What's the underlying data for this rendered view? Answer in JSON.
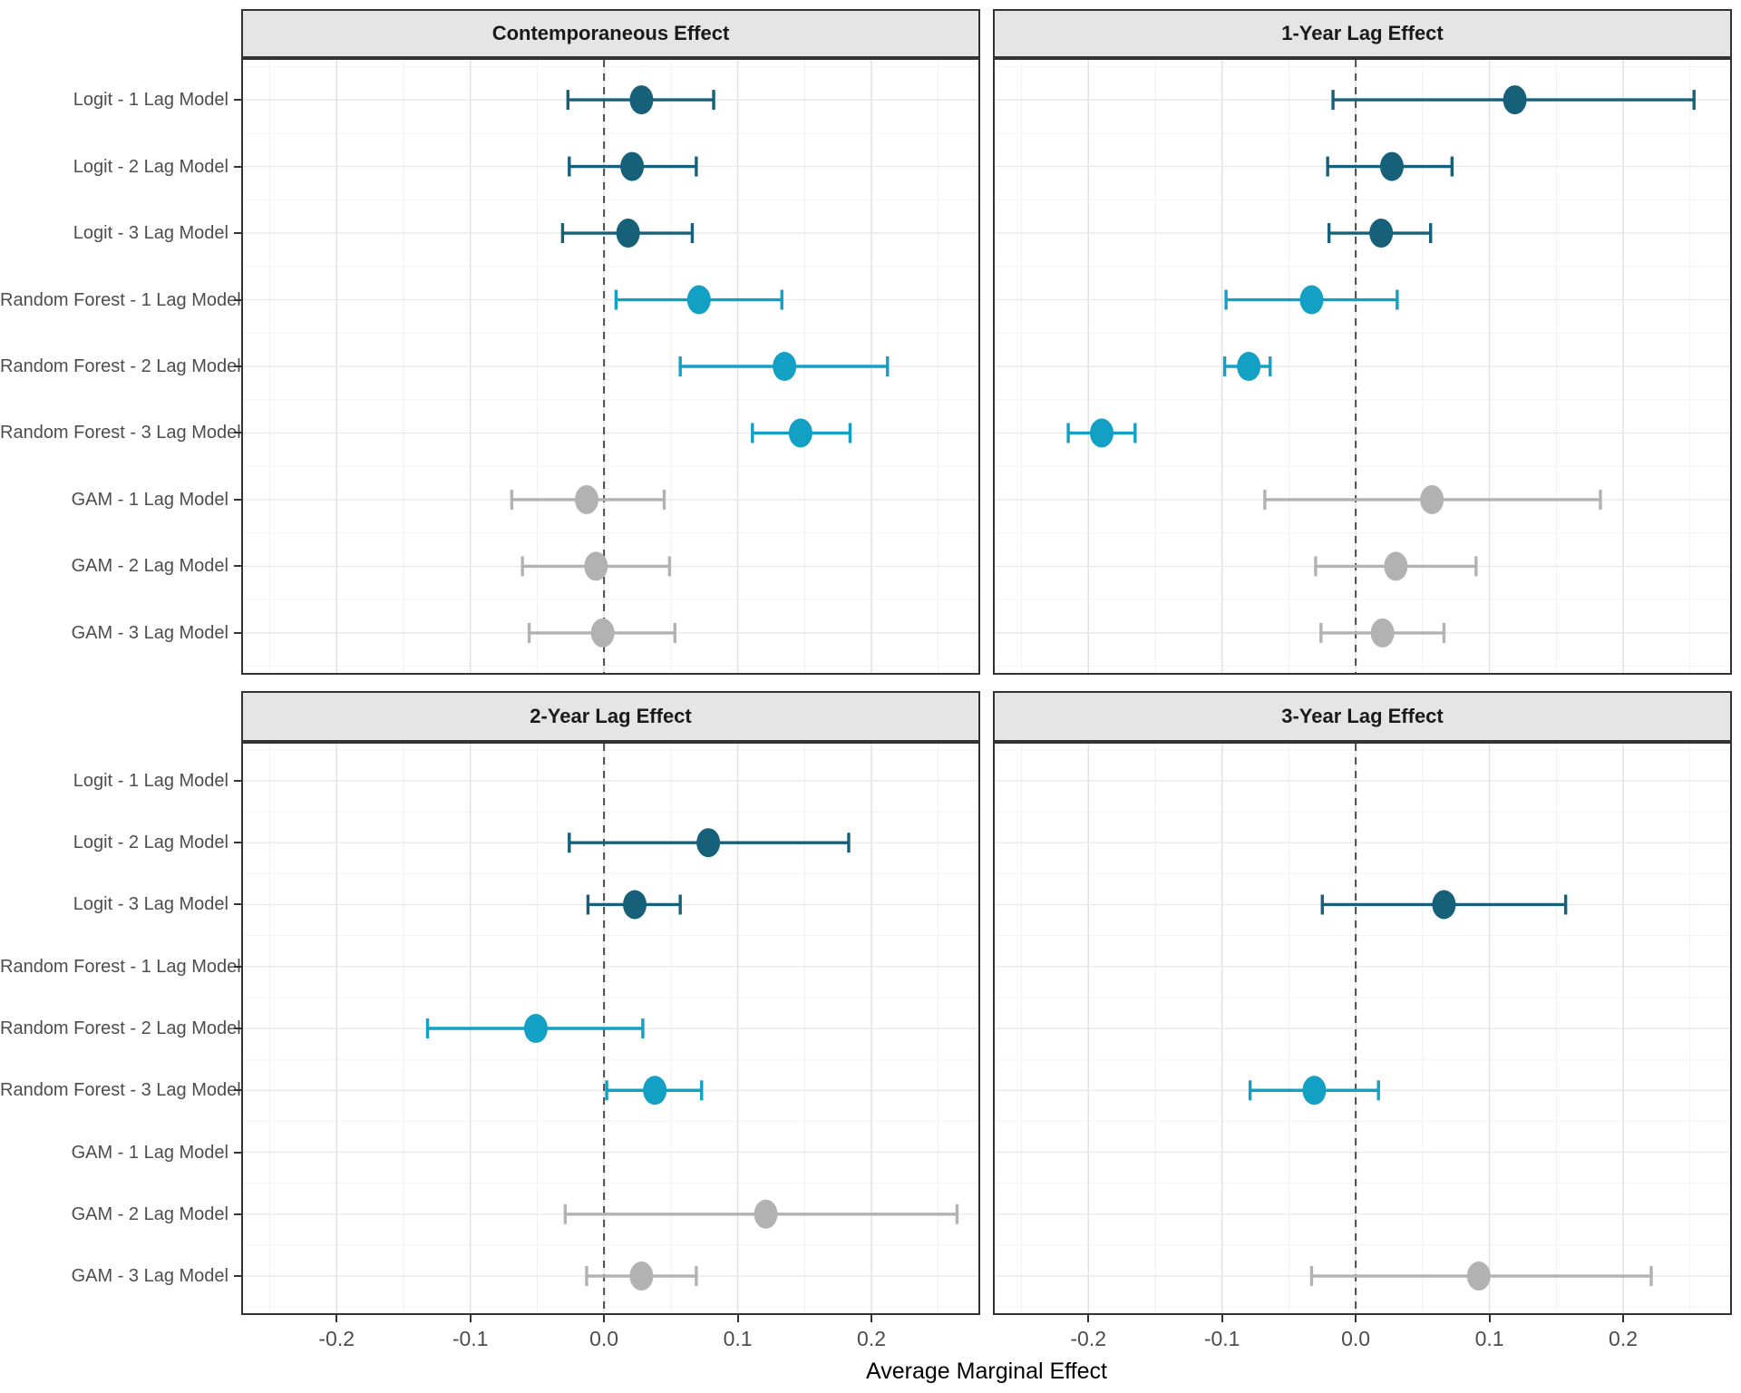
{
  "chart_data": {
    "type": "scatter",
    "subtype": "forest-pointrange",
    "xlabel": "Average Marginal Effect",
    "categories": [
      "Logit - 1 Lag Model",
      "Logit - 2 Lag Model",
      "Logit - 3 Lag Model",
      "Random Forest - 1 Lag Model",
      "Random Forest - 2 Lag Model",
      "Random Forest - 3 Lag Model",
      "GAM - 1 Lag Model",
      "GAM - 2 Lag Model",
      "GAM - 3 Lag Model"
    ],
    "colors": {
      "logit": "#166179",
      "random_forest": "#12A0C4",
      "gam": "#b2b2b2"
    },
    "x_axis": {
      "tick_values": [
        -0.2,
        -0.1,
        0.0,
        0.1,
        0.2
      ],
      "tick_labels": [
        "-0.2",
        "-0.1",
        "0.0",
        "0.1",
        "0.2"
      ],
      "range": [
        -0.27,
        0.28
      ],
      "minor_step": 0.05,
      "zero_reference_line": 0.0,
      "grid": true
    },
    "facets": [
      {
        "title": "Contemporaneous Effect",
        "rows": [
          {
            "label": "Logit - 1 Lag Model",
            "group": "logit",
            "est": 0.028,
            "lo": -0.027,
            "hi": 0.082
          },
          {
            "label": "Logit - 2 Lag Model",
            "group": "logit",
            "est": 0.021,
            "lo": -0.026,
            "hi": 0.069
          },
          {
            "label": "Logit - 3 Lag Model",
            "group": "logit",
            "est": 0.018,
            "lo": -0.031,
            "hi": 0.066
          },
          {
            "label": "Random Forest - 1 Lag Model",
            "group": "random_forest",
            "est": 0.071,
            "lo": 0.009,
            "hi": 0.133
          },
          {
            "label": "Random Forest - 2 Lag Model",
            "group": "random_forest",
            "est": 0.135,
            "lo": 0.057,
            "hi": 0.212
          },
          {
            "label": "Random Forest - 3 Lag Model",
            "group": "random_forest",
            "est": 0.147,
            "lo": 0.111,
            "hi": 0.184
          },
          {
            "label": "GAM - 1 Lag Model",
            "group": "gam",
            "est": -0.013,
            "lo": -0.069,
            "hi": 0.045
          },
          {
            "label": "GAM - 2 Lag Model",
            "group": "gam",
            "est": -0.006,
            "lo": -0.061,
            "hi": 0.049
          },
          {
            "label": "GAM - 3 Lag Model",
            "group": "gam",
            "est": -0.001,
            "lo": -0.056,
            "hi": 0.053
          }
        ]
      },
      {
        "title": "1-Year Lag Effect",
        "rows": [
          {
            "label": "Logit - 1 Lag Model",
            "group": "logit",
            "est": 0.119,
            "lo": -0.017,
            "hi": 0.253
          },
          {
            "label": "Logit - 2 Lag Model",
            "group": "logit",
            "est": 0.027,
            "lo": -0.021,
            "hi": 0.072
          },
          {
            "label": "Logit - 3 Lag Model",
            "group": "logit",
            "est": 0.019,
            "lo": -0.02,
            "hi": 0.056
          },
          {
            "label": "Random Forest - 1 Lag Model",
            "group": "random_forest",
            "est": -0.033,
            "lo": -0.097,
            "hi": 0.031
          },
          {
            "label": "Random Forest - 2 Lag Model",
            "group": "random_forest",
            "est": -0.08,
            "lo": -0.098,
            "hi": -0.064
          },
          {
            "label": "Random Forest - 3 Lag Model",
            "group": "random_forest",
            "est": -0.19,
            "lo": -0.215,
            "hi": -0.165
          },
          {
            "label": "GAM - 1 Lag Model",
            "group": "gam",
            "est": 0.057,
            "lo": -0.068,
            "hi": 0.183
          },
          {
            "label": "GAM - 2 Lag Model",
            "group": "gam",
            "est": 0.03,
            "lo": -0.03,
            "hi": 0.09
          },
          {
            "label": "GAM - 3 Lag Model",
            "group": "gam",
            "est": 0.02,
            "lo": -0.026,
            "hi": 0.066
          }
        ]
      },
      {
        "title": "2-Year Lag Effect",
        "rows": [
          {
            "label": "Logit - 1 Lag Model",
            "group": "logit",
            "est": null,
            "lo": null,
            "hi": null
          },
          {
            "label": "Logit - 2 Lag Model",
            "group": "logit",
            "est": 0.078,
            "lo": -0.026,
            "hi": 0.183
          },
          {
            "label": "Logit - 3 Lag Model",
            "group": "logit",
            "est": 0.023,
            "lo": -0.012,
            "hi": 0.057
          },
          {
            "label": "Random Forest - 1 Lag Model",
            "group": "random_forest",
            "est": null,
            "lo": null,
            "hi": null
          },
          {
            "label": "Random Forest - 2 Lag Model",
            "group": "random_forest",
            "est": -0.051,
            "lo": -0.132,
            "hi": 0.029
          },
          {
            "label": "Random Forest - 3 Lag Model",
            "group": "random_forest",
            "est": 0.038,
            "lo": 0.002,
            "hi": 0.073
          },
          {
            "label": "GAM - 1 Lag Model",
            "group": "gam",
            "est": null,
            "lo": null,
            "hi": null
          },
          {
            "label": "GAM - 2 Lag Model",
            "group": "gam",
            "est": 0.121,
            "lo": -0.029,
            "hi": 0.264
          },
          {
            "label": "GAM - 3 Lag Model",
            "group": "gam",
            "est": 0.028,
            "lo": -0.013,
            "hi": 0.069
          }
        ]
      },
      {
        "title": "3-Year Lag Effect",
        "rows": [
          {
            "label": "Logit - 1 Lag Model",
            "group": "logit",
            "est": null,
            "lo": null,
            "hi": null
          },
          {
            "label": "Logit - 2 Lag Model",
            "group": "logit",
            "est": null,
            "lo": null,
            "hi": null
          },
          {
            "label": "Logit - 3 Lag Model",
            "group": "logit",
            "est": 0.066,
            "lo": -0.025,
            "hi": 0.157
          },
          {
            "label": "Random Forest - 1 Lag Model",
            "group": "random_forest",
            "est": null,
            "lo": null,
            "hi": null
          },
          {
            "label": "Random Forest - 2 Lag Model",
            "group": "random_forest",
            "est": null,
            "lo": null,
            "hi": null
          },
          {
            "label": "Random Forest - 3 Lag Model",
            "group": "random_forest",
            "est": -0.031,
            "lo": -0.079,
            "hi": 0.017
          },
          {
            "label": "GAM - 1 Lag Model",
            "group": "gam",
            "est": null,
            "lo": null,
            "hi": null
          },
          {
            "label": "GAM - 2 Lag Model",
            "group": "gam",
            "est": null,
            "lo": null,
            "hi": null
          },
          {
            "label": "GAM - 3 Lag Model",
            "group": "gam",
            "est": 0.092,
            "lo": -0.033,
            "hi": 0.221
          }
        ]
      }
    ]
  }
}
